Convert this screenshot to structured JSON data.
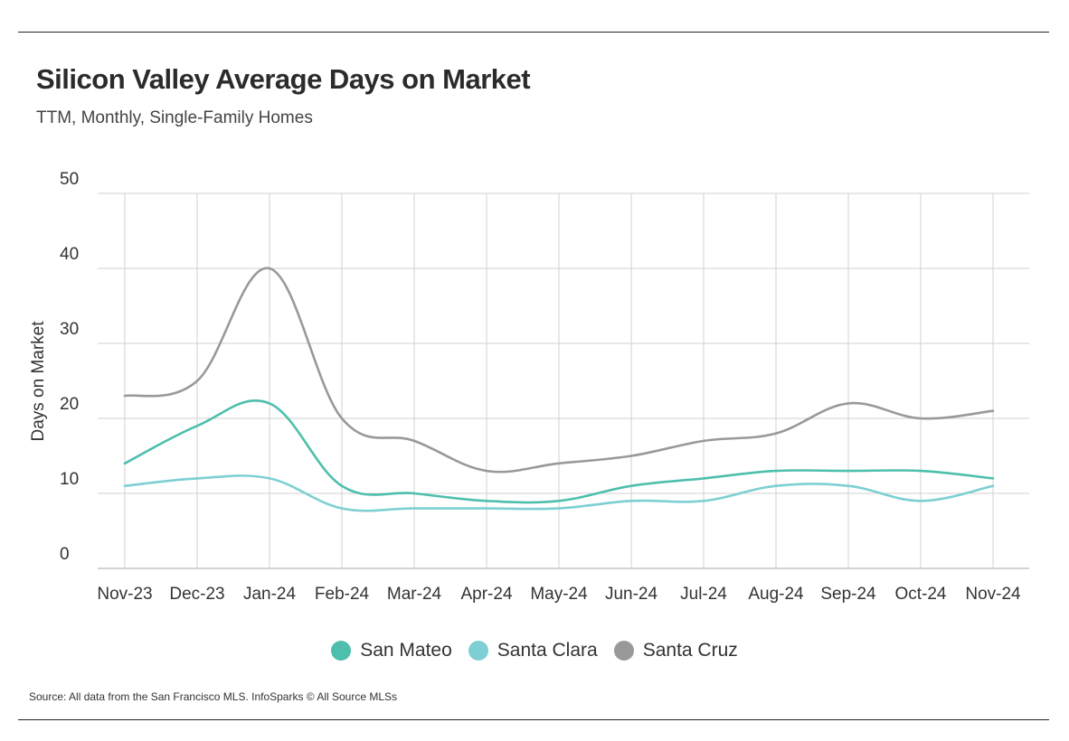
{
  "title": "Silicon Valley Average Days on Market",
  "subtitle": "TTM, Monthly, Single-Family Homes",
  "source": "Source:  All data from the San Francisco MLS. InfoSparks © All Source MLSs",
  "chart_data": {
    "type": "line",
    "title": "Silicon Valley Average Days on Market",
    "subtitle": "TTM, Monthly, Single-Family Homes",
    "xlabel": "",
    "ylabel": "Days on Market",
    "ylim": [
      0,
      50
    ],
    "yticks": [
      "0",
      "10",
      "20",
      "30",
      "40",
      "50"
    ],
    "grid": true,
    "legend_position": "bottom",
    "categories": [
      "Nov-23",
      "Dec-23",
      "Jan-24",
      "Feb-24",
      "Mar-24",
      "Apr-24",
      "May-24",
      "Jun-24",
      "Jul-24",
      "Aug-24",
      "Sep-24",
      "Oct-24",
      "Nov-24"
    ],
    "series": [
      {
        "name": "San Mateo",
        "color": "#4dbfac",
        "values": [
          14,
          19,
          22,
          11,
          10,
          9,
          9,
          11,
          12,
          13,
          13,
          13,
          12
        ]
      },
      {
        "name": "Santa Clara",
        "color": "#7dcfd3",
        "values": [
          11,
          12,
          12,
          8,
          8,
          8,
          8,
          9,
          9,
          11,
          11,
          9,
          11
        ]
      },
      {
        "name": "Santa Cruz",
        "color": "#999999",
        "values": [
          23,
          25,
          40,
          20,
          17,
          13,
          14,
          15,
          17,
          18,
          22,
          20,
          21
        ]
      }
    ]
  }
}
